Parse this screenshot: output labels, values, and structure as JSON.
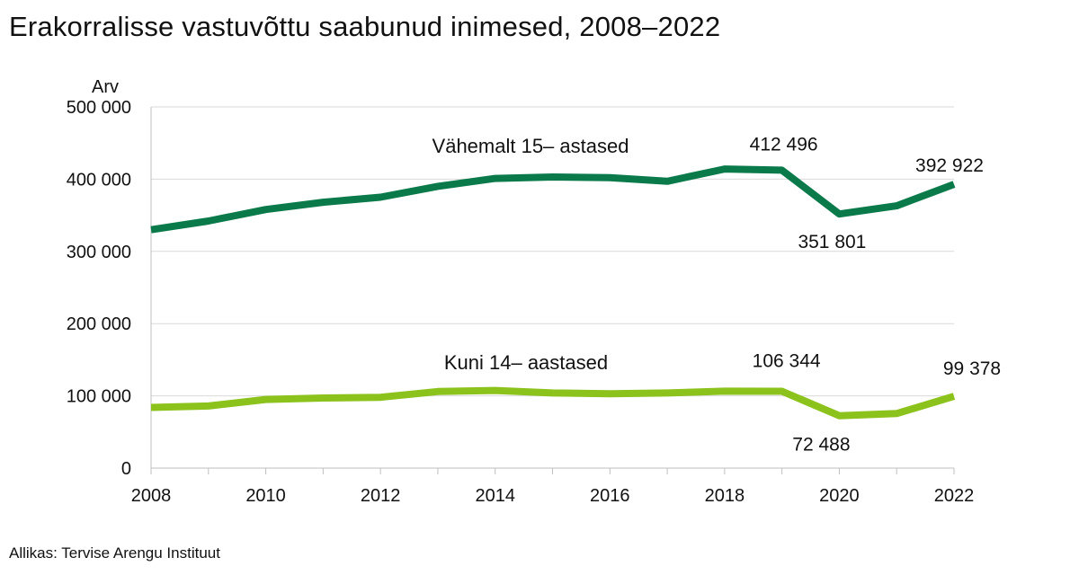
{
  "title": "Erakorralisse vastuvõttu saabunud inimesed, 2008–2022",
  "source": "Allikas: Tervise Arengu Instituut",
  "chart_data": {
    "type": "line",
    "ylabel": "Arv",
    "xlabel": "",
    "ylim": [
      0,
      500000
    ],
    "yticks": [
      0,
      100000,
      200000,
      300000,
      400000,
      500000
    ],
    "ytick_labels": [
      "0",
      "100 000",
      "200 000",
      "300 000",
      "400 000",
      "500 000"
    ],
    "xticks": [
      2008,
      2010,
      2012,
      2014,
      2016,
      2018,
      2020,
      2022
    ],
    "x": [
      2008,
      2009,
      2010,
      2011,
      2012,
      2013,
      2014,
      2015,
      2016,
      2017,
      2018,
      2019,
      2020,
      2021,
      2022
    ],
    "grid": "horizontal",
    "series": [
      {
        "name": "Vähemalt 15– astased",
        "color": "#0b7a4a",
        "values": [
          330000,
          342000,
          358000,
          368000,
          375000,
          390000,
          401000,
          403000,
          402000,
          397000,
          414000,
          412496,
          351801,
          363000,
          392922
        ]
      },
      {
        "name": "Kuni 14– aastased",
        "color": "#8cc21c",
        "values": [
          84000,
          86000,
          95000,
          97000,
          98000,
          106000,
          107500,
          104000,
          103000,
          104000,
          106500,
          106344,
          72488,
          75500,
          99378
        ]
      }
    ],
    "annotations": [
      {
        "series": 0,
        "x": 2019,
        "text": "412 496"
      },
      {
        "series": 0,
        "x": 2020,
        "text": "351 801"
      },
      {
        "series": 0,
        "x": 2022,
        "text": "392 922"
      },
      {
        "series": 1,
        "x": 2019,
        "text": "106 344"
      },
      {
        "series": 1,
        "x": 2020,
        "text": "72 488"
      },
      {
        "series": 1,
        "x": 2022,
        "text": "99 378"
      }
    ]
  }
}
